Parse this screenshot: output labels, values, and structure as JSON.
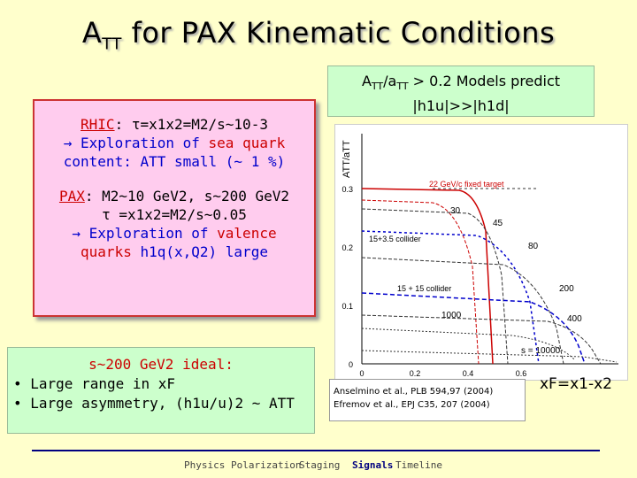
{
  "title": {
    "main": "A",
    "sub": "TT",
    "rest": " for PAX Kinematic Conditions"
  },
  "note": {
    "line1_a": "A",
    "line1_sub1": "TT",
    "line1_b": "/a",
    "line1_sub2": "TT",
    "line1_c": " > 0.2 Models predict",
    "line2": "|h1u|>>|h1d|"
  },
  "rhic": {
    "name": "RHIC",
    "formula": ": τ=x1x2=M2/s~10-3",
    "expl_a": "→ Exploration of ",
    "expl_b": "sea quark",
    "expl_c": "content: ATT small (~ 1 %)"
  },
  "pax": {
    "name": "PAX",
    "formula": ": M2~10 GeV2, s~200 GeV2",
    "tau": "τ =x1x2=M2/s~0.05",
    "expl_a": "→ Exploration of ",
    "expl_b": "valence",
    "expl_c": "quarks",
    "expl_d": " h1q(x,Q2) large"
  },
  "ideal": {
    "heading": "s~200 GeV2 ideal:",
    "item1": "• Large range in xF",
    "item2": "• Large asymmetry, (h1u/u)2 ~ ATT"
  },
  "plot": {
    "ylabel": "ATT/aTT",
    "yticks": [
      "0",
      "0.1",
      "0.2",
      "0.3"
    ],
    "xticks": [
      "0",
      "0.2",
      "0.4",
      "0.6"
    ],
    "labels": [
      "22 GeV/c fixed target",
      "30",
      "45",
      "15+3.5 collider",
      "80",
      "15 + 15 collider",
      "200",
      "1000",
      "400",
      "s = 10000"
    ]
  },
  "xf_label": "xF=x1-x2",
  "refs": [
    "Anselmino et al., PLB 594,97 (2004)",
    "Efremov et al., EPJ C35, 207 (2004)"
  ],
  "nav": [
    "Physics",
    "Polarization",
    "Staging",
    "Signals",
    "Timeline"
  ],
  "colors": {
    "background": "#ffffcc",
    "green_box": "#ccffcc",
    "pink_box": "#ffccee",
    "accent_red": "#cc0000",
    "accent_blue": "#0000cc"
  }
}
